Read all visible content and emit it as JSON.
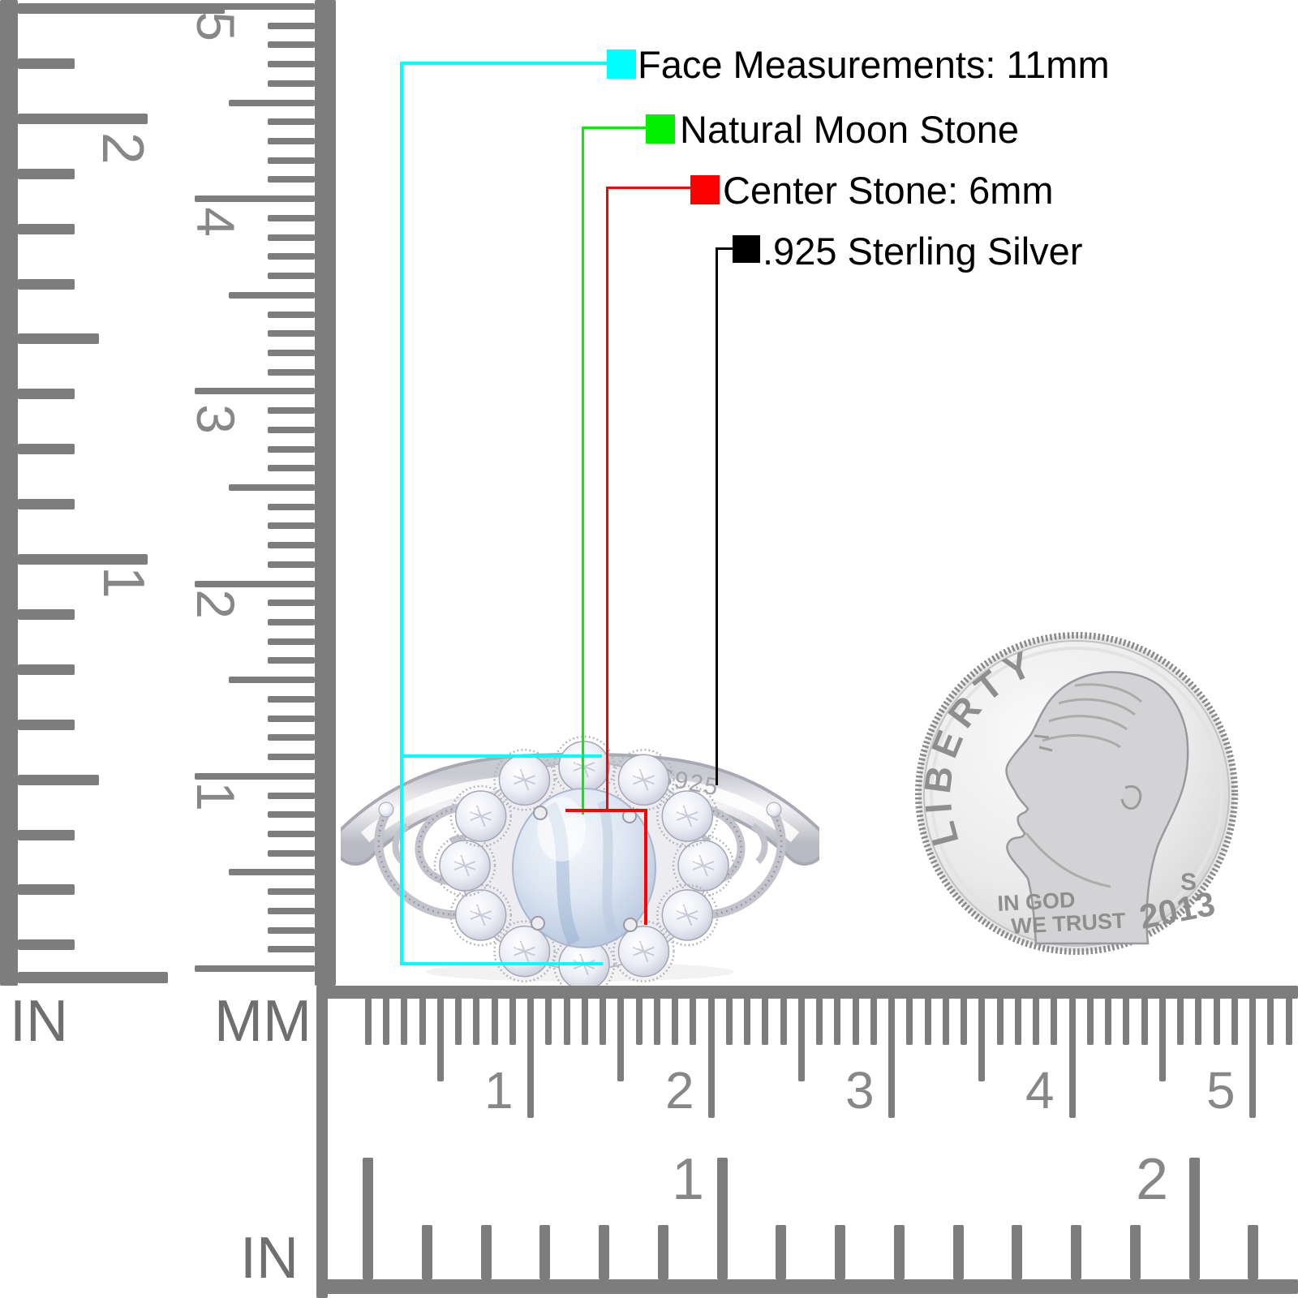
{
  "legend": {
    "items": [
      {
        "id": "face",
        "label": "Face Measurements: 11mm",
        "color": "#00ffff"
      },
      {
        "id": "stone_type",
        "label": "Natural Moon Stone",
        "color": "#00f000"
      },
      {
        "id": "center_stone",
        "label": "Center Stone: 6mm",
        "color": "#ff0000"
      },
      {
        "id": "metal",
        "label": ".925 Sterling Silver",
        "color": "#000000"
      }
    ]
  },
  "rulers": {
    "left_inch": {
      "unit": "IN",
      "numbers": [
        "2",
        "1"
      ]
    },
    "left_mm": {
      "unit": "MM",
      "numbers": [
        "5",
        "4",
        "3",
        "2",
        "1"
      ]
    },
    "bottom_mm": {
      "numbers": [
        "1",
        "2",
        "3",
        "4",
        "5"
      ]
    },
    "bottom_inch": {
      "unit": "IN",
      "numbers": [
        "1",
        "2"
      ]
    }
  },
  "ring": {
    "engraving": "S925"
  },
  "coin": {
    "inscription": "LIBERTY",
    "motto_line1": "IN GOD",
    "motto_line2": "WE TRUST",
    "mint_mark": "S",
    "year": "2013"
  }
}
